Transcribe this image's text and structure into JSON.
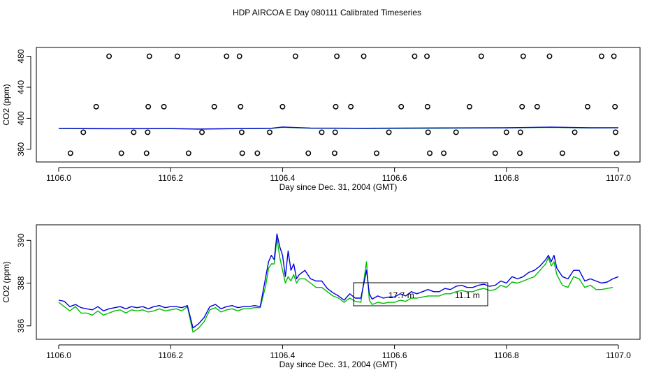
{
  "figure": {
    "title": "HDP AIRCOA E  Day 080111  Calibrated Timeseries"
  },
  "colors": {
    "blue": "#0000dd",
    "green": "#00bb00",
    "axis": "#000000",
    "marker": "#000000"
  },
  "chart_data": [
    {
      "type": "line",
      "xlabel": "Day since Dec. 31, 2004 (GMT)",
      "ylabel": "CO2 (ppm)",
      "xlim": [
        1106.0,
        1107.0
      ],
      "ylim": [
        350,
        485
      ],
      "xticks": [
        "1106.0",
        "1106.2",
        "1106.4",
        "1106.6",
        "1106.8",
        "1107.0"
      ],
      "xtick_values": [
        1106.0,
        1106.2,
        1106.4,
        1106.6,
        1106.8,
        1107.0
      ],
      "yticks": [
        "360",
        "400",
        "440",
        "480"
      ],
      "ytick_values": [
        360,
        400,
        440,
        480
      ],
      "scatter": {
        "marker": "open-circle",
        "x": [
          1106.09,
          1106.162,
          1106.212,
          1106.3,
          1106.323,
          1106.423,
          1106.497,
          1106.545,
          1106.636,
          1106.658,
          1106.755,
          1106.83,
          1106.877,
          1106.97,
          1106.992,
          1106.067,
          1106.16,
          1106.188,
          1106.278,
          1106.325,
          1106.4,
          1106.495,
          1106.522,
          1106.612,
          1106.659,
          1106.734,
          1106.828,
          1106.855,
          1106.945,
          1106.994,
          1106.044,
          1106.134,
          1106.159,
          1106.256,
          1106.327,
          1106.377,
          1106.47,
          1106.494,
          1106.59,
          1106.66,
          1106.71,
          1106.8,
          1106.825,
          1106.922,
          1106.995,
          1106.021,
          1106.112,
          1106.157,
          1106.232,
          1106.328,
          1106.355,
          1106.446,
          1106.493,
          1106.568,
          1106.663,
          1106.688,
          1106.78,
          1106.824,
          1106.9,
          1106.997
        ],
        "y": [
          480,
          480,
          480,
          480,
          480,
          480,
          480,
          480,
          480,
          480,
          480,
          480,
          480,
          480,
          480,
          415,
          415,
          415,
          415,
          415,
          415,
          415,
          415,
          415,
          415,
          415,
          415,
          415,
          415,
          415,
          382,
          382,
          382,
          382,
          382,
          382,
          382,
          382,
          382,
          382,
          382,
          382,
          382,
          382,
          382,
          355,
          355,
          355,
          355,
          355,
          355,
          355,
          355,
          355,
          355,
          355,
          355,
          355,
          355,
          355
        ]
      },
      "series": [
        {
          "color": "blue",
          "x": [
            1106.0,
            1106.1,
            1106.2,
            1106.25,
            1106.3,
            1106.38,
            1106.4,
            1106.45,
            1106.55,
            1106.7,
            1106.8,
            1106.88,
            1106.95,
            1107.0
          ],
          "y": [
            387,
            386.6,
            386.8,
            386.2,
            386.6,
            387.2,
            388.8,
            387.4,
            387.2,
            387.6,
            387.8,
            388.6,
            387.8,
            387.9
          ]
        },
        {
          "color": "green",
          "x": [
            1106.0,
            1106.1,
            1106.2,
            1106.25,
            1106.3,
            1106.38,
            1106.4,
            1106.45,
            1106.55,
            1106.7,
            1106.8,
            1106.88,
            1106.95,
            1107.0
          ],
          "y": [
            386.8,
            386.4,
            386.6,
            386.0,
            386.4,
            387.0,
            388.4,
            387.2,
            386.9,
            387.3,
            387.6,
            388.3,
            387.5,
            387.7
          ]
        }
      ]
    },
    {
      "type": "line",
      "xlabel": "Day since Dec. 31, 2004 (GMT)",
      "ylabel": "CO2 (ppm)",
      "xlim": [
        1106.0,
        1107.0
      ],
      "ylim": [
        385.6,
        390.5
      ],
      "xticks": [
        "1106.0",
        "1106.2",
        "1106.4",
        "1106.6",
        "1106.8",
        "1107.0"
      ],
      "xtick_values": [
        1106.0,
        1106.2,
        1106.4,
        1106.6,
        1106.8,
        1107.0
      ],
      "yticks": [
        "386",
        "388",
        "390"
      ],
      "ytick_values": [
        386,
        388,
        390
      ],
      "legend": {
        "placement": "center",
        "entries": [
          "17.7 m",
          "11.1 m"
        ]
      },
      "series": [
        {
          "name": "17.7 m",
          "color": "blue",
          "x": [
            1106.0,
            1106.01,
            1106.02,
            1106.03,
            1106.04,
            1106.05,
            1106.06,
            1106.07,
            1106.08,
            1106.09,
            1106.1,
            1106.11,
            1106.12,
            1106.13,
            1106.14,
            1106.15,
            1106.16,
            1106.17,
            1106.18,
            1106.19,
            1106.2,
            1106.21,
            1106.22,
            1106.23,
            1106.24,
            1106.25,
            1106.26,
            1106.27,
            1106.28,
            1106.29,
            1106.3,
            1106.31,
            1106.32,
            1106.33,
            1106.34,
            1106.35,
            1106.36,
            1106.37,
            1106.375,
            1106.38,
            1106.385,
            1106.39,
            1106.395,
            1106.4,
            1106.405,
            1106.41,
            1106.415,
            1106.42,
            1106.425,
            1106.43,
            1106.44,
            1106.45,
            1106.46,
            1106.47,
            1106.48,
            1106.49,
            1106.5,
            1106.51,
            1106.52,
            1106.53,
            1106.54,
            1106.55,
            1106.555,
            1106.56,
            1106.57,
            1106.58,
            1106.59,
            1106.6,
            1106.61,
            1106.62,
            1106.63,
            1106.64,
            1106.65,
            1106.66,
            1106.67,
            1106.68,
            1106.69,
            1106.7,
            1106.71,
            1106.72,
            1106.73,
            1106.74,
            1106.75,
            1106.76,
            1106.77,
            1106.78,
            1106.79,
            1106.8,
            1106.81,
            1106.82,
            1106.83,
            1106.84,
            1106.85,
            1106.86,
            1106.87,
            1106.875,
            1106.88,
            1106.885,
            1106.89,
            1106.9,
            1106.91,
            1106.92,
            1106.93,
            1106.94,
            1106.95,
            1106.96,
            1106.97,
            1106.98,
            1106.99,
            1107.0
          ],
          "y": [
            387.2,
            387.15,
            386.9,
            387.0,
            386.85,
            386.8,
            386.75,
            386.9,
            386.7,
            386.8,
            386.85,
            386.9,
            386.8,
            386.9,
            386.85,
            386.9,
            386.8,
            386.9,
            386.95,
            386.85,
            386.9,
            386.9,
            386.85,
            386.95,
            385.9,
            386.1,
            386.4,
            386.9,
            387.0,
            386.8,
            386.9,
            386.95,
            386.85,
            386.9,
            386.9,
            386.95,
            386.9,
            388.3,
            389.0,
            389.3,
            389.1,
            390.3,
            389.7,
            389.3,
            388.3,
            389.5,
            388.6,
            388.9,
            388.2,
            388.4,
            388.6,
            388.2,
            388.1,
            388.1,
            387.75,
            387.55,
            387.4,
            387.2,
            387.5,
            387.3,
            387.3,
            388.6,
            387.5,
            387.25,
            387.4,
            387.3,
            387.35,
            387.35,
            387.5,
            387.4,
            387.6,
            387.5,
            387.6,
            387.7,
            387.6,
            387.6,
            387.75,
            387.7,
            387.85,
            387.9,
            387.8,
            387.8,
            387.9,
            387.95,
            387.85,
            387.9,
            388.1,
            388.0,
            388.3,
            388.2,
            388.3,
            388.5,
            388.6,
            388.8,
            389.1,
            389.3,
            389.0,
            389.3,
            388.7,
            388.3,
            388.2,
            388.6,
            388.6,
            388.1,
            388.2,
            388.1,
            388.0,
            388.05,
            388.2,
            388.3
          ]
        },
        {
          "name": "11.1 m",
          "color": "green",
          "x": [
            1106.0,
            1106.01,
            1106.02,
            1106.03,
            1106.04,
            1106.05,
            1106.06,
            1106.07,
            1106.08,
            1106.09,
            1106.1,
            1106.11,
            1106.12,
            1106.13,
            1106.14,
            1106.15,
            1106.16,
            1106.17,
            1106.18,
            1106.19,
            1106.2,
            1106.21,
            1106.22,
            1106.23,
            1106.24,
            1106.25,
            1106.26,
            1106.27,
            1106.28,
            1106.29,
            1106.3,
            1106.31,
            1106.32,
            1106.33,
            1106.34,
            1106.35,
            1106.36,
            1106.37,
            1106.375,
            1106.38,
            1106.385,
            1106.39,
            1106.395,
            1106.4,
            1106.405,
            1106.41,
            1106.415,
            1106.42,
            1106.425,
            1106.43,
            1106.44,
            1106.45,
            1106.46,
            1106.47,
            1106.48,
            1106.49,
            1106.5,
            1106.51,
            1106.52,
            1106.53,
            1106.54,
            1106.55,
            1106.555,
            1106.56,
            1106.57,
            1106.58,
            1106.59,
            1106.6,
            1106.61,
            1106.62,
            1106.63,
            1106.64,
            1106.65,
            1106.66,
            1106.67,
            1106.68,
            1106.69,
            1106.7,
            1106.71,
            1106.72,
            1106.73,
            1106.74,
            1106.75,
            1106.76,
            1106.77,
            1106.78,
            1106.79,
            1106.8,
            1106.81,
            1106.82,
            1106.83,
            1106.84,
            1106.85,
            1106.86,
            1106.87,
            1106.875,
            1106.88,
            1106.885,
            1106.89,
            1106.9,
            1106.91,
            1106.92,
            1106.93,
            1106.94,
            1106.95,
            1106.96,
            1106.97,
            1106.98,
            1106.99
          ],
          "y": [
            387.1,
            386.9,
            386.7,
            386.9,
            386.6,
            386.6,
            386.5,
            386.7,
            386.5,
            386.6,
            386.7,
            386.75,
            386.6,
            386.75,
            386.7,
            386.75,
            386.65,
            386.7,
            386.8,
            386.7,
            386.75,
            386.8,
            386.7,
            386.9,
            385.7,
            385.9,
            386.2,
            386.75,
            386.85,
            386.65,
            386.75,
            386.8,
            386.7,
            386.8,
            386.8,
            386.85,
            386.85,
            387.9,
            388.7,
            388.9,
            388.9,
            390.1,
            389.2,
            388.6,
            388.0,
            388.3,
            388.1,
            388.4,
            388.0,
            388.2,
            388.2,
            388.0,
            387.8,
            387.8,
            387.6,
            387.4,
            387.3,
            387.1,
            387.3,
            387.15,
            387.1,
            389.0,
            387.2,
            387.0,
            387.1,
            387.05,
            387.1,
            387.1,
            387.2,
            387.15,
            387.3,
            387.3,
            387.35,
            387.4,
            387.4,
            387.4,
            387.5,
            387.5,
            387.6,
            387.65,
            387.6,
            387.6,
            387.7,
            387.75,
            387.65,
            387.7,
            387.9,
            387.8,
            388.05,
            388.0,
            388.1,
            388.2,
            388.3,
            388.6,
            388.9,
            389.2,
            388.8,
            389.0,
            388.4,
            387.9,
            387.8,
            388.3,
            388.2,
            387.8,
            387.9,
            387.7,
            387.7,
            387.75,
            387.8
          ]
        }
      ]
    }
  ]
}
